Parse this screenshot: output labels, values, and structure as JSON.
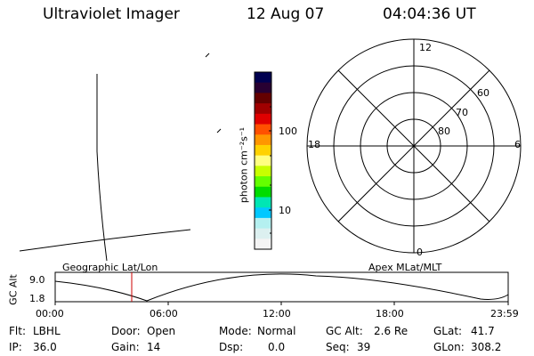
{
  "header": {
    "instrument": "Ultraviolet Imager",
    "date": "12 Aug 07",
    "time": "04:04:36 UT"
  },
  "colorbar": {
    "label": "photon cm⁻²s⁻¹",
    "ticks": [
      "100",
      "10"
    ],
    "colors": [
      "#000050",
      "#280032",
      "#640000",
      "#a00000",
      "#e00000",
      "#ff5000",
      "#ff9600",
      "#ffd200",
      "#ffff80",
      "#c8ff00",
      "#64ff00",
      "#00dc00",
      "#00e6b4",
      "#00c8ff",
      "#b4f0f0",
      "#dcf0f0",
      "#f4f4f4"
    ]
  },
  "polar": {
    "mlt_labels": {
      "top": "12",
      "left": "18",
      "right": "6",
      "bottom": "0"
    },
    "lat_labels": [
      "60",
      "70",
      "80"
    ]
  },
  "panels": {
    "left_label": "Geographic Lat/Lon",
    "right_label": "Apex MLat/MLT"
  },
  "altitude_plot": {
    "ylabel": "GC Alt",
    "yticks": [
      "9.0",
      "1.8"
    ],
    "xticks": [
      "00:00",
      "06:00",
      "12:00",
      "18:00",
      "23:59"
    ],
    "current_time_color": "#cc0000"
  },
  "info": {
    "filter_label": "Flt:",
    "filter_value": "LBHL",
    "door_label": "Door:",
    "door_value": "Open",
    "mode_label": "Mode:",
    "mode_value": "Normal",
    "gcalt_label": "GC Alt:",
    "gcalt_value": "2.6 Re",
    "glat_label": "GLat:",
    "glat_value": "41.7",
    "ip_label": "IP:",
    "ip_value": "36.0",
    "gain_label": "Gain:",
    "gain_value": "14",
    "dsp_label": "Dsp:",
    "dsp_value": "0.0",
    "seq_label": "Seq:",
    "seq_value": "39",
    "glon_label": "GLon:",
    "glon_value": "308.2"
  }
}
